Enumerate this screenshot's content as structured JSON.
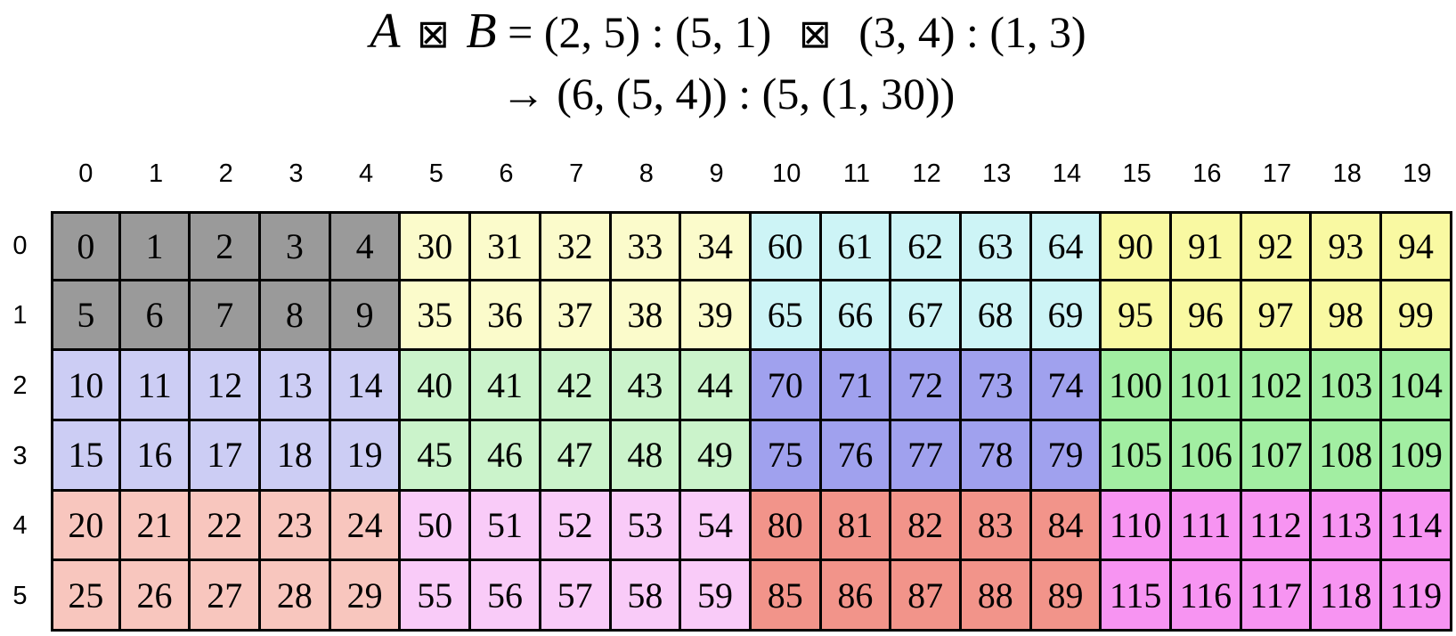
{
  "title": {
    "a": "A",
    "op": "⊠",
    "b": "B",
    "equals": "=",
    "left_expr": "(2, 5) : (5, 1)",
    "middle_op": "⊠",
    "right_expr": "(3, 4) : (1, 3)",
    "result_line": "→ (6, (5, 4)) : (5, (1, 30))"
  },
  "grid": {
    "column_headers": [
      "0",
      "1",
      "2",
      "3",
      "4",
      "5",
      "6",
      "7",
      "8",
      "9",
      "10",
      "11",
      "12",
      "13",
      "14",
      "15",
      "16",
      "17",
      "18",
      "19"
    ],
    "row_headers": [
      "0",
      "1",
      "2",
      "3",
      "4",
      "5"
    ],
    "cells": [
      [
        0,
        1,
        2,
        3,
        4,
        30,
        31,
        32,
        33,
        34,
        60,
        61,
        62,
        63,
        64,
        90,
        91,
        92,
        93,
        94
      ],
      [
        5,
        6,
        7,
        8,
        9,
        35,
        36,
        37,
        38,
        39,
        65,
        66,
        67,
        68,
        69,
        95,
        96,
        97,
        98,
        99
      ],
      [
        10,
        11,
        12,
        13,
        14,
        40,
        41,
        42,
        43,
        44,
        70,
        71,
        72,
        73,
        74,
        100,
        101,
        102,
        103,
        104
      ],
      [
        15,
        16,
        17,
        18,
        19,
        45,
        46,
        47,
        48,
        49,
        75,
        76,
        77,
        78,
        79,
        105,
        106,
        107,
        108,
        109
      ],
      [
        20,
        21,
        22,
        23,
        24,
        50,
        51,
        52,
        53,
        54,
        80,
        81,
        82,
        83,
        84,
        110,
        111,
        112,
        113,
        114
      ],
      [
        25,
        26,
        27,
        28,
        29,
        55,
        56,
        57,
        58,
        59,
        85,
        86,
        87,
        88,
        89,
        115,
        116,
        117,
        118,
        119
      ]
    ],
    "block_rows": 2,
    "block_cols": 5,
    "block_colors": [
      [
        "#9a9a9a",
        "#fbfbcb",
        "#cdf4f6",
        "#f9f9a2"
      ],
      [
        "#cccdf4",
        "#cbf3cb",
        "#a0a1ee",
        "#a2eea2"
      ],
      [
        "#f8c6be",
        "#f9cbf8",
        "#f2948a",
        "#f794f2"
      ]
    ],
    "border_color": "#000000",
    "text_color": "#000000"
  }
}
